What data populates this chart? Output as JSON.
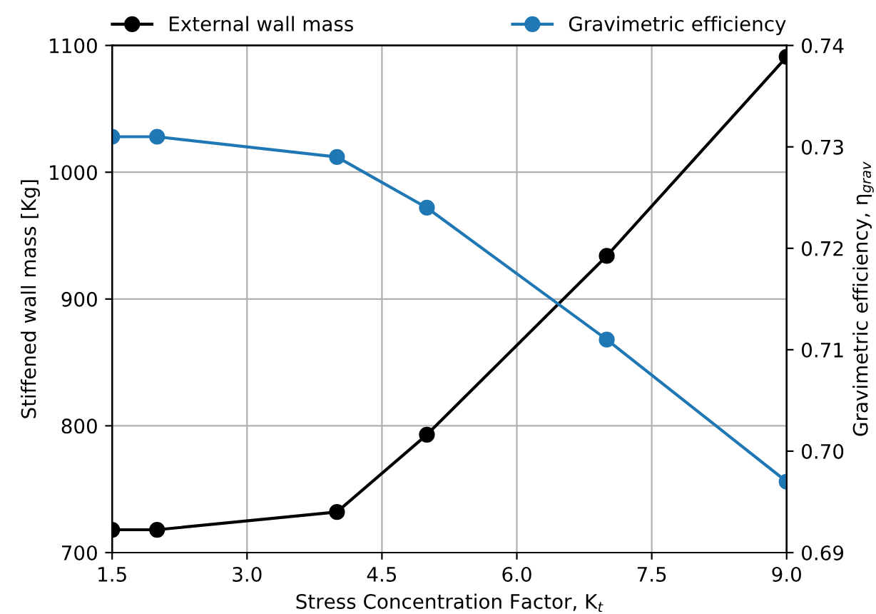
{
  "chart_data": {
    "type": "line",
    "xlabel": "Stress Concentration Factor, K$_{t}$",
    "ylabel": "Stiffened wall mass [Kg]",
    "y2label": "Gravimetric efficiency, η$_{grav}$",
    "x": [
      1.5,
      2,
      4,
      5,
      7,
      9
    ],
    "series": [
      {
        "name": "External wall mass",
        "color": "#000000",
        "values": [
          718,
          718,
          732,
          793,
          934,
          1091
        ]
      },
      {
        "name": "Gravimetric efficiency",
        "color": "#1f77b4",
        "axis": "y2",
        "values": [
          0.731,
          0.731,
          0.729,
          0.724,
          0.711,
          0.697
        ]
      }
    ],
    "xlim": [
      1.5,
      9.0
    ],
    "xticks": [
      {
        "value": 1.5,
        "label": "1.5"
      },
      {
        "value": 3.0,
        "label": "3.0"
      },
      {
        "value": 4.5,
        "label": "4.5"
      },
      {
        "value": 6.0,
        "label": "6.0"
      },
      {
        "value": 7.5,
        "label": "7.5"
      },
      {
        "value": 9.0,
        "label": "9.0"
      }
    ],
    "ylim": [
      700,
      1100
    ],
    "yticks": [
      700,
      800,
      900,
      1000,
      1100
    ],
    "y2lim": [
      0.69,
      0.74
    ],
    "y2ticks": [
      {
        "value": 0.69,
        "label": "0.69"
      },
      {
        "value": 0.7,
        "label": "0.70"
      },
      {
        "value": 0.71,
        "label": "0.71"
      },
      {
        "value": 0.72,
        "label": "0.72"
      },
      {
        "value": 0.73,
        "label": "0.73"
      },
      {
        "value": 0.74,
        "label": "0.74"
      }
    ],
    "grid": true,
    "legend": "top",
    "marker": "circle",
    "line_style": "solid"
  }
}
